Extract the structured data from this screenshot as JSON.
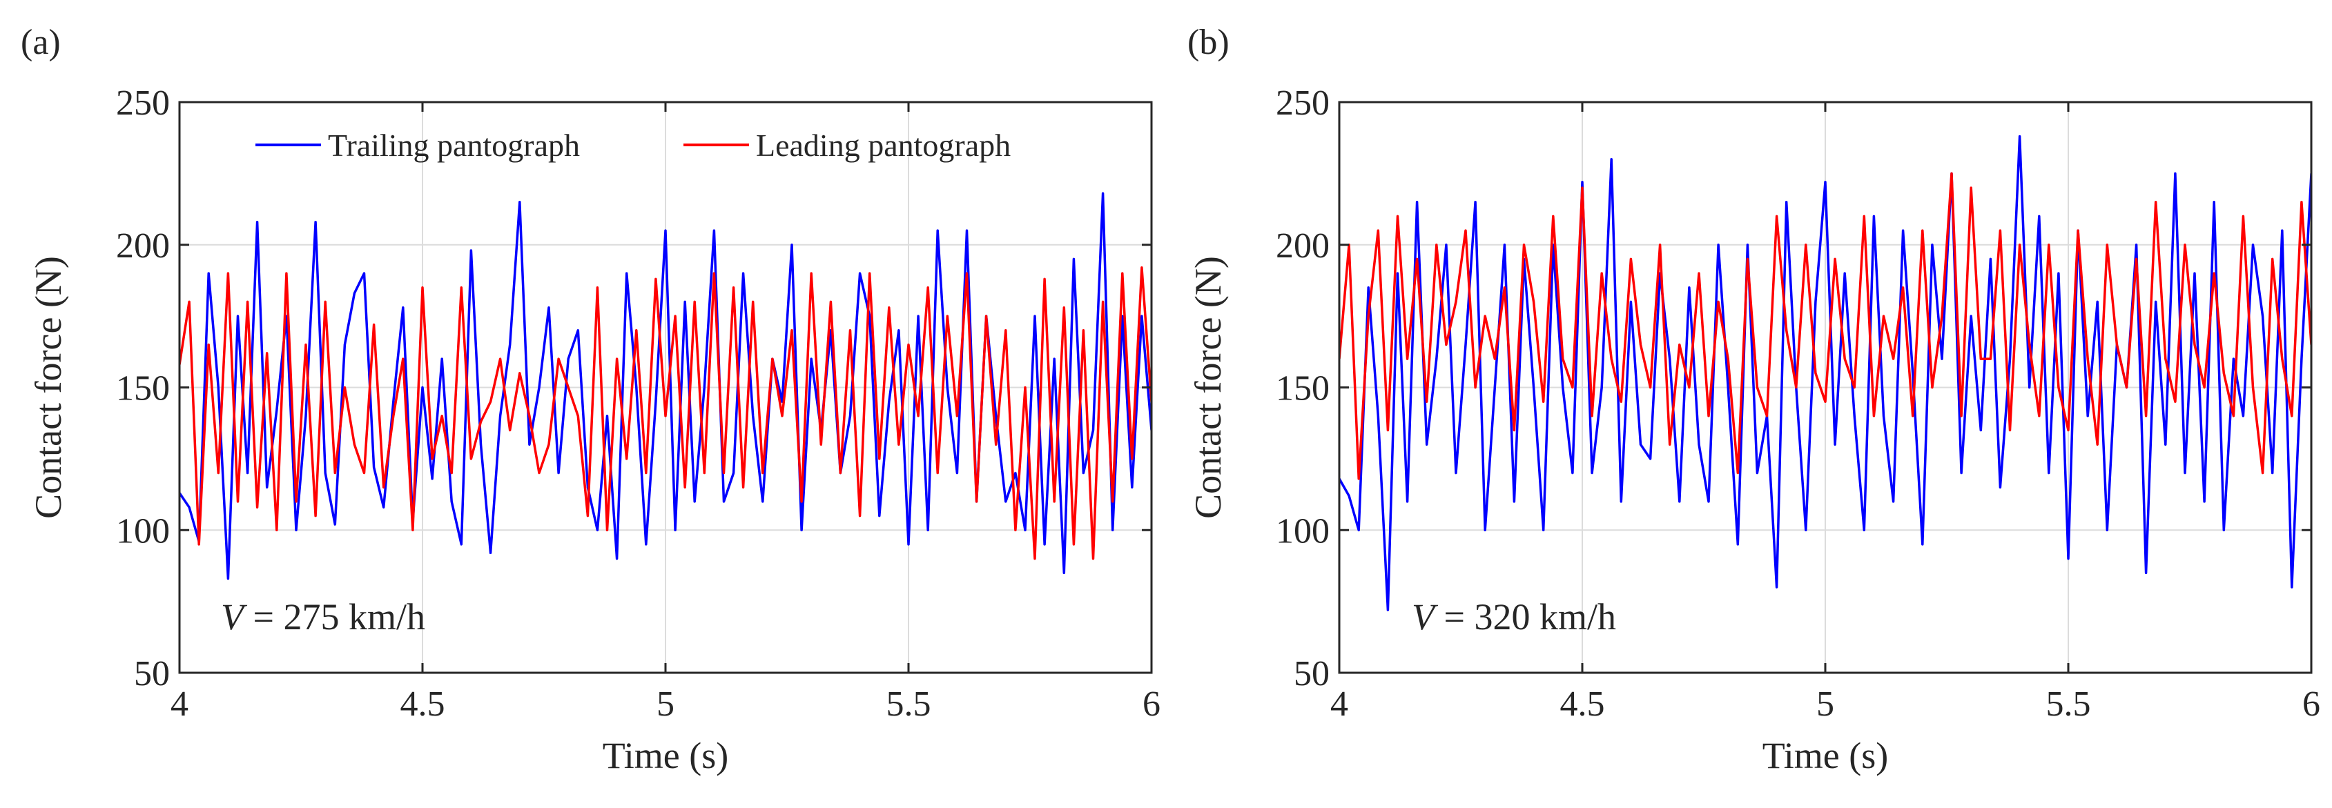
{
  "chart_data": [
    {
      "type": "line",
      "panel_label": "(a)",
      "title": "",
      "xlabel": "Time (s)",
      "ylabel": "Contact force (N)",
      "xlim": [
        4,
        6
      ],
      "ylim": [
        50,
        250
      ],
      "xticks": [
        4,
        4.5,
        5,
        5.5,
        6
      ],
      "xtick_labels": [
        "4",
        "4.5",
        "5",
        "5.5",
        "6"
      ],
      "yticks": [
        50,
        100,
        150,
        200,
        250
      ],
      "ytick_labels": [
        "50",
        "100",
        "150",
        "200",
        "250"
      ],
      "grid": true,
      "legend_position": "top",
      "annotation": {
        "var": "V",
        "text": " = 275 km/h"
      },
      "series": [
        {
          "name": "Trailing pantograph",
          "color": "#0000ff",
          "x": [
            4.0,
            4.02,
            4.04,
            4.06,
            4.08,
            4.1,
            4.12,
            4.14,
            4.16,
            4.18,
            4.2,
            4.22,
            4.24,
            4.26,
            4.28,
            4.3,
            4.32,
            4.34,
            4.36,
            4.38,
            4.4,
            4.42,
            4.44,
            4.46,
            4.48,
            4.5,
            4.52,
            4.54,
            4.56,
            4.58,
            4.6,
            4.62,
            4.64,
            4.66,
            4.68,
            4.7,
            4.72,
            4.74,
            4.76,
            4.78,
            4.8,
            4.82,
            4.84,
            4.86,
            4.88,
            4.9,
            4.92,
            4.94,
            4.96,
            4.98,
            5.0,
            5.02,
            5.04,
            5.06,
            5.08,
            5.1,
            5.12,
            5.14,
            5.16,
            5.18,
            5.2,
            5.22,
            5.24,
            5.26,
            5.28,
            5.3,
            5.32,
            5.34,
            5.36,
            5.38,
            5.4,
            5.42,
            5.44,
            5.46,
            5.48,
            5.5,
            5.52,
            5.54,
            5.56,
            5.58,
            5.6,
            5.62,
            5.64,
            5.66,
            5.68,
            5.7,
            5.72,
            5.74,
            5.76,
            5.78,
            5.8,
            5.82,
            5.84,
            5.86,
            5.88,
            5.9,
            5.92,
            5.94,
            5.96,
            5.98,
            6.0
          ],
          "values": [
            113,
            108,
            96,
            190,
            150,
            83,
            175,
            120,
            208,
            115,
            142,
            175,
            100,
            140,
            208,
            120,
            102,
            165,
            183,
            190,
            122,
            108,
            145,
            178,
            103,
            150,
            118,
            160,
            110,
            95,
            198,
            130,
            92,
            140,
            165,
            215,
            130,
            150,
            178,
            120,
            160,
            170,
            115,
            100,
            140,
            90,
            190,
            150,
            95,
            145,
            205,
            100,
            180,
            110,
            150,
            205,
            110,
            120,
            190,
            140,
            110,
            160,
            145,
            200,
            100,
            160,
            135,
            170,
            120,
            140,
            190,
            175,
            105,
            145,
            170,
            95,
            175,
            100,
            205,
            150,
            120,
            205,
            110,
            175,
            140,
            110,
            120,
            100,
            175,
            95,
            160,
            85,
            195,
            120,
            135,
            218,
            100,
            175,
            115,
            175,
            135
          ]
        },
        {
          "name": "Leading pantograph",
          "color": "#ff0000",
          "x": [
            4.0,
            4.02,
            4.04,
            4.06,
            4.08,
            4.1,
            4.12,
            4.14,
            4.16,
            4.18,
            4.2,
            4.22,
            4.24,
            4.26,
            4.28,
            4.3,
            4.32,
            4.34,
            4.36,
            4.38,
            4.4,
            4.42,
            4.44,
            4.46,
            4.48,
            4.5,
            4.52,
            4.54,
            4.56,
            4.58,
            4.6,
            4.62,
            4.64,
            4.66,
            4.68,
            4.7,
            4.72,
            4.74,
            4.76,
            4.78,
            4.8,
            4.82,
            4.84,
            4.86,
            4.88,
            4.9,
            4.92,
            4.94,
            4.96,
            4.98,
            5.0,
            5.02,
            5.04,
            5.06,
            5.08,
            5.1,
            5.12,
            5.14,
            5.16,
            5.18,
            5.2,
            5.22,
            5.24,
            5.26,
            5.28,
            5.3,
            5.32,
            5.34,
            5.36,
            5.38,
            5.4,
            5.42,
            5.44,
            5.46,
            5.48,
            5.5,
            5.52,
            5.54,
            5.56,
            5.58,
            5.6,
            5.62,
            5.64,
            5.66,
            5.68,
            5.7,
            5.72,
            5.74,
            5.76,
            5.78,
            5.8,
            5.82,
            5.84,
            5.86,
            5.88,
            5.9,
            5.92,
            5.94,
            5.96,
            5.98,
            6.0
          ],
          "values": [
            158,
            180,
            95,
            165,
            120,
            190,
            110,
            180,
            108,
            162,
            100,
            190,
            110,
            165,
            105,
            180,
            120,
            150,
            130,
            120,
            172,
            115,
            140,
            160,
            100,
            185,
            125,
            140,
            120,
            185,
            125,
            138,
            145,
            160,
            135,
            155,
            140,
            120,
            130,
            160,
            150,
            140,
            105,
            185,
            100,
            160,
            125,
            170,
            120,
            188,
            140,
            175,
            115,
            180,
            120,
            190,
            120,
            185,
            115,
            180,
            120,
            160,
            140,
            170,
            110,
            190,
            130,
            180,
            120,
            170,
            105,
            190,
            125,
            178,
            130,
            165,
            140,
            185,
            120,
            175,
            140,
            190,
            110,
            175,
            130,
            170,
            100,
            150,
            90,
            188,
            110,
            178,
            95,
            170,
            90,
            180,
            110,
            190,
            125,
            192,
            145
          ]
        }
      ]
    },
    {
      "type": "line",
      "panel_label": "(b)",
      "title": "",
      "xlabel": "Time (s)",
      "ylabel": "Contact force (N)",
      "xlim": [
        4,
        6
      ],
      "ylim": [
        50,
        250
      ],
      "xticks": [
        4,
        4.5,
        5,
        5.5,
        6
      ],
      "xtick_labels": [
        "4",
        "4.5",
        "5",
        "5.5",
        "6"
      ],
      "yticks": [
        50,
        100,
        150,
        200,
        250
      ],
      "ytick_labels": [
        "50",
        "100",
        "150",
        "200",
        "250"
      ],
      "grid": true,
      "annotation": {
        "var": "V",
        "text": " = 320 km/h"
      },
      "series": [
        {
          "name": "Trailing pantograph",
          "color": "#0000ff",
          "x": [
            4.0,
            4.02,
            4.04,
            4.06,
            4.08,
            4.1,
            4.12,
            4.14,
            4.16,
            4.18,
            4.2,
            4.22,
            4.24,
            4.26,
            4.28,
            4.3,
            4.32,
            4.34,
            4.36,
            4.38,
            4.4,
            4.42,
            4.44,
            4.46,
            4.48,
            4.5,
            4.52,
            4.54,
            4.56,
            4.58,
            4.6,
            4.62,
            4.64,
            4.66,
            4.68,
            4.7,
            4.72,
            4.74,
            4.76,
            4.78,
            4.8,
            4.82,
            4.84,
            4.86,
            4.88,
            4.9,
            4.92,
            4.94,
            4.96,
            4.98,
            5.0,
            5.02,
            5.04,
            5.06,
            5.08,
            5.1,
            5.12,
            5.14,
            5.16,
            5.18,
            5.2,
            5.22,
            5.24,
            5.26,
            5.28,
            5.3,
            5.32,
            5.34,
            5.36,
            5.38,
            5.4,
            5.42,
            5.44,
            5.46,
            5.48,
            5.5,
            5.52,
            5.54,
            5.56,
            5.58,
            5.6,
            5.62,
            5.64,
            5.66,
            5.68,
            5.7,
            5.72,
            5.74,
            5.76,
            5.78,
            5.8,
            5.82,
            5.84,
            5.86,
            5.88,
            5.9,
            5.92,
            5.94,
            5.96,
            5.98,
            6.0
          ],
          "values": [
            118,
            112,
            100,
            185,
            140,
            72,
            190,
            110,
            215,
            130,
            160,
            200,
            120,
            165,
            215,
            100,
            150,
            200,
            110,
            195,
            150,
            100,
            200,
            150,
            120,
            222,
            120,
            150,
            230,
            110,
            180,
            130,
            125,
            190,
            160,
            110,
            185,
            130,
            110,
            200,
            150,
            95,
            200,
            120,
            140,
            80,
            215,
            150,
            100,
            180,
            222,
            130,
            190,
            140,
            100,
            210,
            140,
            110,
            205,
            155,
            95,
            200,
            160,
            225,
            120,
            175,
            135,
            195,
            115,
            160,
            238,
            150,
            210,
            120,
            190,
            90,
            205,
            140,
            180,
            100,
            165,
            150,
            200,
            85,
            180,
            130,
            225,
            120,
            190,
            110,
            215,
            100,
            160,
            140,
            200,
            175,
            120,
            205,
            80,
            160,
            225
          ]
        },
        {
          "name": "Leading pantograph",
          "color": "#ff0000",
          "x": [
            4.0,
            4.02,
            4.04,
            4.06,
            4.08,
            4.1,
            4.12,
            4.14,
            4.16,
            4.18,
            4.2,
            4.22,
            4.24,
            4.26,
            4.28,
            4.3,
            4.32,
            4.34,
            4.36,
            4.38,
            4.4,
            4.42,
            4.44,
            4.46,
            4.48,
            4.5,
            4.52,
            4.54,
            4.56,
            4.58,
            4.6,
            4.62,
            4.64,
            4.66,
            4.68,
            4.7,
            4.72,
            4.74,
            4.76,
            4.78,
            4.8,
            4.82,
            4.84,
            4.86,
            4.88,
            4.9,
            4.92,
            4.94,
            4.96,
            4.98,
            5.0,
            5.02,
            5.04,
            5.06,
            5.08,
            5.1,
            5.12,
            5.14,
            5.16,
            5.18,
            5.2,
            5.22,
            5.24,
            5.26,
            5.28,
            5.3,
            5.32,
            5.34,
            5.36,
            5.38,
            5.4,
            5.42,
            5.44,
            5.46,
            5.48,
            5.5,
            5.52,
            5.54,
            5.56,
            5.58,
            5.6,
            5.62,
            5.64,
            5.66,
            5.68,
            5.7,
            5.72,
            5.74,
            5.76,
            5.78,
            5.8,
            5.82,
            5.84,
            5.86,
            5.88,
            5.9,
            5.92,
            5.94,
            5.96,
            5.98,
            6.0
          ],
          "values": [
            160,
            200,
            118,
            175,
            205,
            135,
            210,
            160,
            195,
            145,
            200,
            165,
            180,
            205,
            150,
            175,
            160,
            185,
            135,
            200,
            180,
            145,
            210,
            160,
            150,
            220,
            140,
            190,
            160,
            145,
            195,
            165,
            150,
            200,
            130,
            165,
            150,
            190,
            140,
            180,
            160,
            120,
            195,
            150,
            140,
            210,
            170,
            150,
            200,
            155,
            145,
            195,
            160,
            150,
            210,
            140,
            175,
            160,
            185,
            140,
            205,
            150,
            175,
            225,
            140,
            220,
            160,
            160,
            205,
            135,
            200,
            165,
            140,
            200,
            150,
            135,
            205,
            160,
            130,
            200,
            165,
            150,
            195,
            140,
            215,
            160,
            145,
            200,
            165,
            150,
            190,
            155,
            140,
            210,
            150,
            120,
            195,
            160,
            140,
            215,
            165
          ]
        }
      ]
    }
  ]
}
